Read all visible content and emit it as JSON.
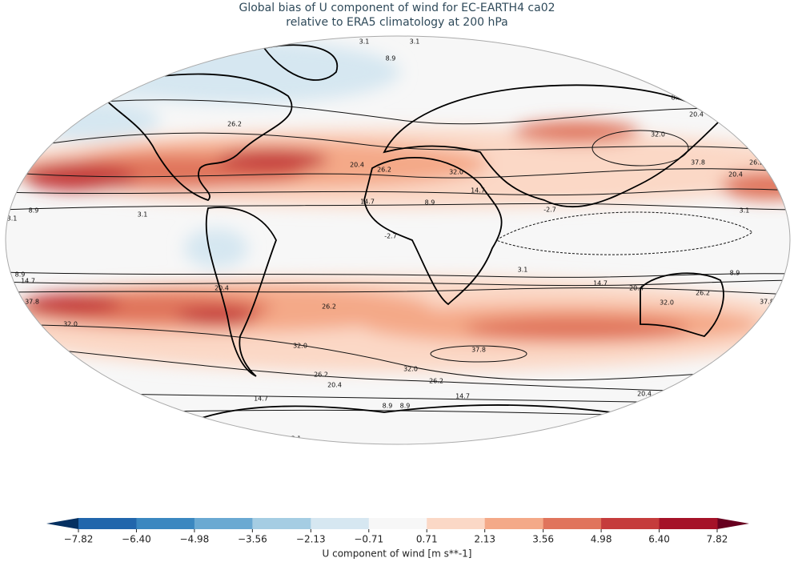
{
  "title": [
    "Global bias of U component of wind for EC-EARTH4 ca02",
    "relative to ERA5 climatology at 200 hPa"
  ],
  "map": {
    "contour_labels": [
      3.1,
      3.1,
      8.9,
      20.4,
      26.2,
      8.9,
      14.7,
      20.4,
      26.2,
      {
        "value": 32,
        "label": "32.0"
      },
      37.8,
      26.2,
      20.4,
      20.4,
      26.2,
      {
        "value": 32,
        "label": "32.0"
      },
      14.7,
      14.7,
      8.9,
      -2.7,
      3.1,
      8.9,
      3.1,
      3.1,
      -2.7,
      3.1,
      8.9,
      8.9,
      14.7,
      14.7,
      20.4,
      20.4,
      26.2,
      37.8,
      37.8,
      {
        "value": 32,
        "label": "32.0"
      },
      26.2,
      {
        "value": 32,
        "label": "32.0"
      },
      20.4,
      {
        "value": 32,
        "label": "32.0"
      },
      37.8,
      26.2,
      {
        "value": 32,
        "label": "32.0"
      },
      26.2,
      26.2,
      20.4,
      26.2,
      14.7,
      14.7,
      20.4,
      8.9,
      8.9,
      3.1,
      3.1
    ]
  },
  "colorbar": {
    "ticks": [
      {
        "value": -7.82,
        "label": "−7.82"
      },
      {
        "value": -6.4,
        "label": "−6.40"
      },
      {
        "value": -4.98,
        "label": "−4.98"
      },
      {
        "value": -3.56,
        "label": "−3.56"
      },
      {
        "value": -2.13,
        "label": "−2.13"
      },
      {
        "value": -0.71,
        "label": "−0.71"
      },
      0.71,
      2.13,
      3.56,
      4.98,
      {
        "value": 6.4,
        "label": "6.40"
      },
      7.82
    ],
    "colors": [
      "#2166ac",
      "#3a87c0",
      "#6aa9d2",
      "#a5cde3",
      "#d6e7f1",
      "#f7f7f7",
      "#fbd8c6",
      "#f4a988",
      "#e0745c",
      "#c53c3c",
      "#a51228"
    ],
    "extend_colors": [
      "#053061",
      "#67001f"
    ],
    "label": "U component of wind [m s**-1]"
  }
}
